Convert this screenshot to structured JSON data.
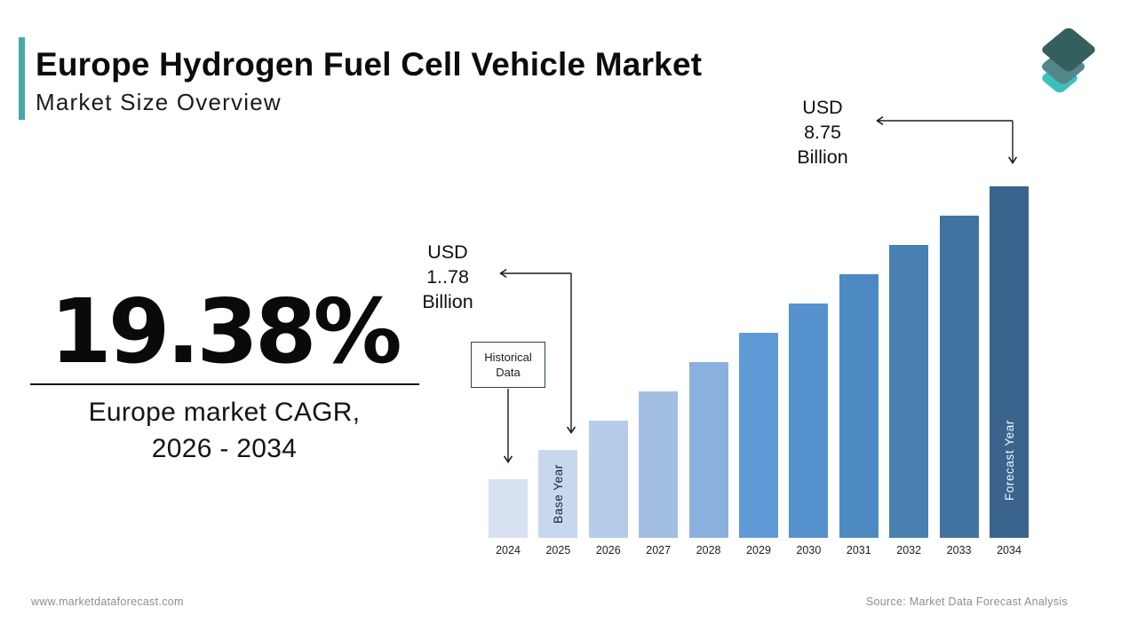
{
  "header": {
    "title": "Europe Hydrogen Fuel Cell Vehicle Market",
    "subtitle": "Market Size Overview",
    "accent_color": "#45a9a7"
  },
  "logo": {
    "name": "market-data-forecast-layers-logo",
    "layer_colors": [
      "#335f5e",
      "#54858a",
      "#3cc0ba"
    ]
  },
  "stat": {
    "value": "19.38%",
    "caption": "Europe market CAGR,\n2026 - 2034"
  },
  "annotations": {
    "forecast_value_text": "USD\n8.75\nBillion",
    "base_value_text": "USD\n1..78\nBillion",
    "historical_box_text": "Historical\nData",
    "base_year_label": "Base Year",
    "forecast_year_label": "Forecast Year"
  },
  "footer": {
    "website": "www.marketdataforecast.com",
    "source": "Source: Market Data Forecast Analysis"
  },
  "chart_data": {
    "type": "bar",
    "title": "Europe Hydrogen Fuel Cell Vehicle Market Size Overview",
    "unit": "USD Billion",
    "categories": [
      "2024",
      "2025",
      "2026",
      "2027",
      "2028",
      "2029",
      "2030",
      "2031",
      "2032",
      "2033",
      "2034"
    ],
    "values": [
      1.01,
      1.78,
      2.55,
      3.33,
      4.1,
      4.88,
      5.65,
      6.43,
      7.2,
      7.98,
      8.75
    ],
    "labeled_points": {
      "2025": "USD 1..78 Billion",
      "2034": "USD 8.75 Billion"
    },
    "base_year": "2025",
    "forecast_year": "2034",
    "historical_years": [
      "2024"
    ],
    "cagr_percent": 19.38,
    "cagr_period": "2026 - 2034",
    "bar_colors": [
      "#d7e1f1",
      "#c7d7ee",
      "#b6cce9",
      "#a2bfe3",
      "#8ab1dd",
      "#5f9ad7",
      "#5591cd",
      "#4d89c2",
      "#4880b2",
      "#4173a1",
      "#3a648e"
    ],
    "xlabel": "",
    "ylabel": "",
    "gridlines": false,
    "axis_lines": false,
    "legend": "none"
  }
}
